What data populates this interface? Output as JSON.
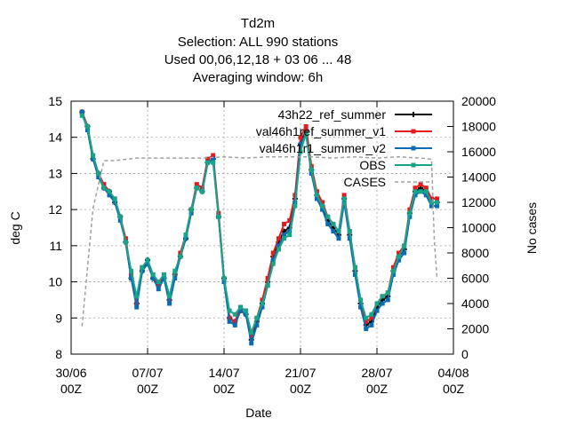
{
  "chart_data": {
    "type": "line",
    "title_lines": [
      "Td2m",
      "Selection: ALL    990 stations",
      "Used  00,06,12,18  + 03 06 ... 48",
      "Averaging window:  6h"
    ],
    "xlabel": "Date",
    "ylabel": "deg C",
    "y2label": "No cases",
    "x_range": [
      "2024-06-30T00Z",
      "2024-08-04T00Z"
    ],
    "xticks": [
      {
        "date": "2024-06-30T00Z",
        "line1": "30/06",
        "line2": "00Z"
      },
      {
        "date": "2024-07-07T00Z",
        "line1": "07/07",
        "line2": "00Z"
      },
      {
        "date": "2024-07-14T00Z",
        "line1": "14/07",
        "line2": "00Z"
      },
      {
        "date": "2024-07-21T00Z",
        "line1": "21/07",
        "line2": "00Z"
      },
      {
        "date": "2024-07-28T00Z",
        "line1": "28/07",
        "line2": "00Z"
      },
      {
        "date": "2024-08-04T00Z",
        "line1": "04/08",
        "line2": "00Z"
      }
    ],
    "ylim": [
      8,
      15
    ],
    "yticks": [
      "8",
      "9",
      "10",
      "11",
      "12",
      "13",
      "14",
      "15"
    ],
    "y2lim": [
      0,
      20000
    ],
    "y2ticks": [
      "0",
      "2000",
      "4000",
      "6000",
      "8000",
      "10000",
      "12000",
      "14000",
      "16000",
      "18000",
      "20000"
    ],
    "grid": true,
    "legend_position": "top-right",
    "x_dates": [
      "2024-07-01T00Z",
      "2024-07-01T12Z",
      "2024-07-02T00Z",
      "2024-07-02T12Z",
      "2024-07-03T00Z",
      "2024-07-03T12Z",
      "2024-07-04T00Z",
      "2024-07-04T12Z",
      "2024-07-05T00Z",
      "2024-07-05T12Z",
      "2024-07-06T00Z",
      "2024-07-06T12Z",
      "2024-07-07T00Z",
      "2024-07-07T12Z",
      "2024-07-08T00Z",
      "2024-07-08T12Z",
      "2024-07-09T00Z",
      "2024-07-09T12Z",
      "2024-07-10T00Z",
      "2024-07-10T12Z",
      "2024-07-11T00Z",
      "2024-07-11T12Z",
      "2024-07-12T00Z",
      "2024-07-12T12Z",
      "2024-07-13T00Z",
      "2024-07-13T12Z",
      "2024-07-14T00Z",
      "2024-07-14T12Z",
      "2024-07-15T00Z",
      "2024-07-15T12Z",
      "2024-07-16T00Z",
      "2024-07-16T12Z",
      "2024-07-17T00Z",
      "2024-07-17T12Z",
      "2024-07-18T00Z",
      "2024-07-18T12Z",
      "2024-07-19T00Z",
      "2024-07-19T12Z",
      "2024-07-20T00Z",
      "2024-07-20T12Z",
      "2024-07-21T00Z",
      "2024-07-21T12Z",
      "2024-07-22T00Z",
      "2024-07-22T12Z",
      "2024-07-23T00Z",
      "2024-07-23T12Z",
      "2024-07-24T00Z",
      "2024-07-24T12Z",
      "2024-07-25T00Z",
      "2024-07-25T12Z",
      "2024-07-26T00Z",
      "2024-07-26T12Z",
      "2024-07-27T00Z",
      "2024-07-27T12Z",
      "2024-07-28T00Z",
      "2024-07-28T12Z",
      "2024-07-29T00Z",
      "2024-07-29T12Z",
      "2024-07-30T00Z",
      "2024-07-30T12Z",
      "2024-07-31T00Z",
      "2024-07-31T12Z",
      "2024-08-01T00Z",
      "2024-08-01T12Z",
      "2024-08-02T00Z",
      "2024-08-02T12Z"
    ],
    "series": [
      {
        "name": "43h22 ref summer",
        "legend_text": "43h22_ref_summer",
        "color": "#000000",
        "marker": "plus",
        "axis": "y1",
        "values": [
          14.7,
          14.3,
          13.4,
          13.0,
          12.6,
          12.5,
          12.2,
          11.8,
          11.1,
          10.1,
          9.4,
          10.3,
          10.6,
          10.1,
          9.9,
          10.1,
          9.5,
          10.2,
          10.7,
          11.2,
          12.0,
          12.6,
          12.5,
          13.3,
          13.4,
          11.8,
          10.1,
          9.0,
          8.9,
          9.2,
          9.1,
          8.4,
          8.9,
          9.4,
          10.0,
          10.7,
          11.1,
          11.4,
          11.5,
          12.3,
          13.8,
          14.2,
          13.1,
          12.4,
          12.1,
          11.7,
          11.5,
          11.3,
          12.3,
          11.3,
          10.3,
          9.4,
          8.8,
          8.9,
          9.3,
          9.5,
          9.6,
          10.3,
          10.7,
          10.9,
          11.9,
          12.5,
          12.6,
          12.5,
          12.2,
          12.2
        ]
      },
      {
        "name": "val46h1ref summer v1",
        "legend_text": "val46h1ref_summer_v1",
        "color": "#e41a1c",
        "marker": "square",
        "axis": "y1",
        "values": [
          14.7,
          14.3,
          13.5,
          13.0,
          12.7,
          12.5,
          12.3,
          11.8,
          11.2,
          10.2,
          9.4,
          10.4,
          10.6,
          10.2,
          9.9,
          10.2,
          9.5,
          10.2,
          10.8,
          11.3,
          12.0,
          12.7,
          12.6,
          13.4,
          13.5,
          11.9,
          10.1,
          9.0,
          8.9,
          9.3,
          9.2,
          8.5,
          9.0,
          9.5,
          10.1,
          10.8,
          11.2,
          11.6,
          11.7,
          12.4,
          14.0,
          14.3,
          13.2,
          12.5,
          12.2,
          11.8,
          11.6,
          11.4,
          12.4,
          11.4,
          10.4,
          9.5,
          8.9,
          9.0,
          9.4,
          9.6,
          9.7,
          10.4,
          10.8,
          11.0,
          12.0,
          12.6,
          12.7,
          12.6,
          12.3,
          12.3
        ]
      },
      {
        "name": "val46h1r1 summer v2",
        "legend_text": "val46h1r1_summer_v2",
        "color": "#0a6bb5",
        "marker": "square",
        "axis": "y1",
        "values": [
          14.7,
          14.2,
          13.4,
          12.9,
          12.6,
          12.4,
          12.2,
          11.7,
          11.1,
          10.1,
          9.3,
          10.3,
          10.5,
          10.1,
          9.8,
          10.1,
          9.4,
          10.1,
          10.7,
          11.2,
          11.9,
          12.6,
          12.5,
          13.3,
          13.4,
          11.8,
          10.0,
          8.9,
          8.8,
          9.2,
          9.1,
          8.3,
          8.8,
          9.3,
          9.9,
          10.6,
          11.0,
          11.3,
          11.4,
          12.2,
          13.8,
          14.1,
          13.0,
          12.3,
          12.0,
          11.6,
          11.4,
          11.2,
          12.2,
          11.2,
          10.2,
          9.3,
          8.7,
          8.8,
          9.2,
          9.4,
          9.5,
          10.2,
          10.6,
          10.8,
          11.8,
          12.4,
          12.5,
          12.4,
          12.1,
          12.1
        ]
      },
      {
        "name": "OBS",
        "legend_text": "OBS",
        "color": "#17a589",
        "marker": "square",
        "axis": "y1",
        "values": [
          14.6,
          14.3,
          13.5,
          13.0,
          12.6,
          12.5,
          12.3,
          11.8,
          11.1,
          10.3,
          9.6,
          10.4,
          10.6,
          10.2,
          10.0,
          10.2,
          9.6,
          10.3,
          10.7,
          11.3,
          12.0,
          12.6,
          12.5,
          13.3,
          13.3,
          11.8,
          10.1,
          9.2,
          9.1,
          9.3,
          9.2,
          8.6,
          9.0,
          9.4,
          9.9,
          10.5,
          10.9,
          11.2,
          11.3,
          12.1,
          13.6,
          14.1,
          13.1,
          12.4,
          12.1,
          11.8,
          11.6,
          11.4,
          12.3,
          11.4,
          10.4,
          9.5,
          9.0,
          9.1,
          9.4,
          9.6,
          9.7,
          10.3,
          10.7,
          11.0,
          11.9,
          12.5,
          12.5,
          12.5,
          12.2,
          12.2
        ]
      },
      {
        "name": "CASES",
        "legend_text": "CASES",
        "color": "#a0a0a0",
        "axis": "y2",
        "dashed": true,
        "x": [
          "2024-07-01T00Z",
          "2024-07-02T00Z",
          "2024-07-03T00Z",
          "2024-07-04T00Z",
          "2024-07-06T00Z",
          "2024-07-08T00Z",
          "2024-07-10T00Z",
          "2024-07-12T00Z",
          "2024-07-14T00Z",
          "2024-07-16T00Z",
          "2024-07-18T00Z",
          "2024-07-20T00Z",
          "2024-07-22T00Z",
          "2024-07-24T00Z",
          "2024-07-26T00Z",
          "2024-07-28T00Z",
          "2024-07-30T00Z",
          "2024-08-01T00Z",
          "2024-08-02T00Z",
          "2024-08-02T06Z",
          "2024-08-02T12Z"
        ],
        "values": [
          2200,
          11500,
          15300,
          15300,
          15500,
          15500,
          15500,
          15500,
          15600,
          15500,
          15600,
          15600,
          15600,
          15500,
          15600,
          15500,
          15600,
          15500,
          15400,
          9000,
          6000
        ]
      }
    ]
  }
}
